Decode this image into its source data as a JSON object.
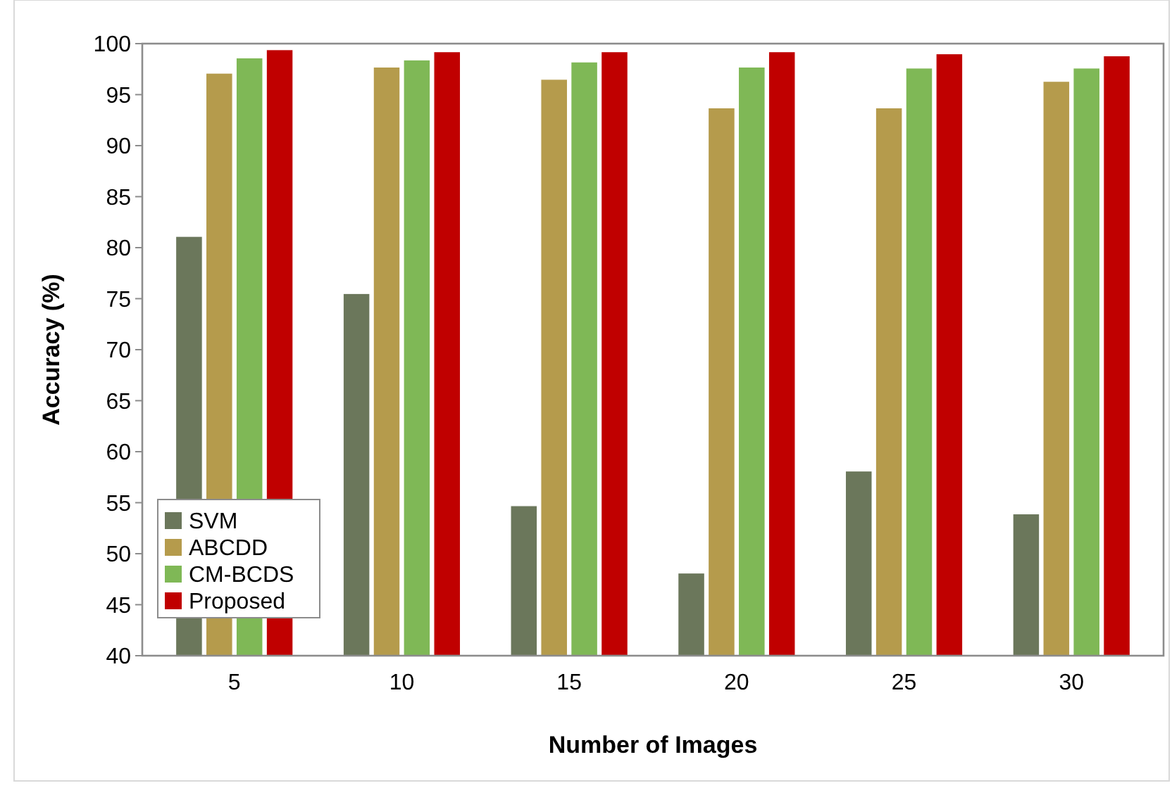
{
  "chart_data": {
    "type": "bar",
    "xlabel": "Number of Images",
    "ylabel": "Accuracy (%)",
    "categories": [
      "5",
      "10",
      "15",
      "20",
      "25",
      "30"
    ],
    "series": [
      {
        "name": "SVM",
        "color": "#6b775b",
        "values": [
          81.1,
          75.5,
          54.7,
          48.1,
          58.1,
          53.9
        ]
      },
      {
        "name": "ABCDD",
        "color": "#b59b4c",
        "values": [
          97.1,
          97.7,
          96.5,
          93.7,
          93.7,
          96.3
        ]
      },
      {
        "name": "CM-BCDS",
        "color": "#7fb856",
        "values": [
          98.6,
          98.4,
          98.2,
          97.7,
          97.6,
          97.6
        ]
      },
      {
        "name": "Proposed",
        "color": "#c00000",
        "values": [
          99.4,
          99.2,
          99.2,
          99.2,
          99.0,
          98.8
        ]
      }
    ],
    "ylim": [
      40,
      100
    ],
    "yticks": [
      40,
      45,
      50,
      55,
      60,
      65,
      70,
      75,
      80,
      85,
      90,
      95,
      100
    ],
    "grid": false,
    "legend": "bottom left"
  }
}
